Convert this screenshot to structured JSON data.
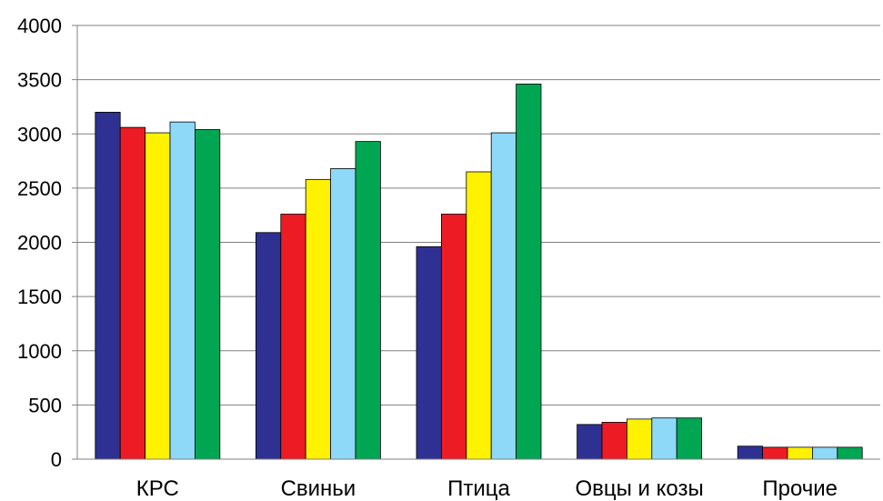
{
  "chart_data": {
    "type": "bar",
    "categories": [
      "КРС",
      "Свиньи",
      "Птица",
      "Овцы и козы",
      "Прочие"
    ],
    "series": [
      {
        "values": [
          3200,
          2090,
          1960,
          320,
          120
        ]
      },
      {
        "values": [
          3060,
          2260,
          2260,
          340,
          110
        ]
      },
      {
        "values": [
          3010,
          2580,
          2650,
          370,
          110
        ]
      },
      {
        "values": [
          3110,
          2680,
          3010,
          380,
          110
        ]
      },
      {
        "values": [
          3040,
          2930,
          3460,
          380,
          110
        ]
      }
    ],
    "ylim": [
      0,
      4000
    ],
    "yticks": [
      0,
      500,
      1000,
      1500,
      2000,
      2500,
      3000,
      3500,
      4000
    ],
    "grid": true,
    "title": "",
    "xlabel": "",
    "ylabel": ""
  },
  "colors": [
    "#2e3192",
    "#ed1c24",
    "#fff200",
    "#8ed8f8",
    "#00a651"
  ]
}
